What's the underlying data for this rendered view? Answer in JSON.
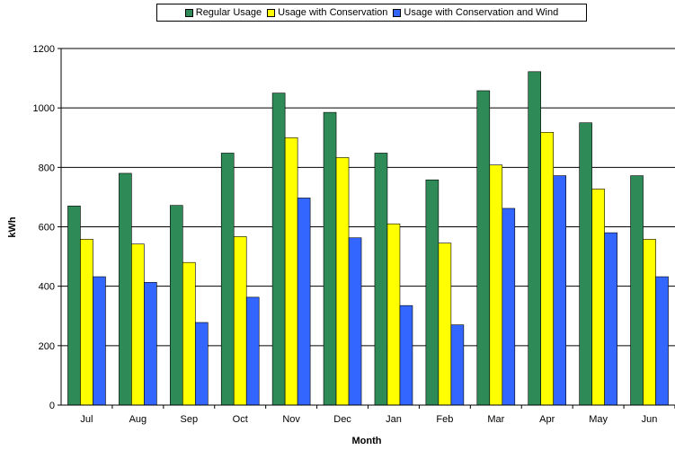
{
  "chart_data": {
    "type": "bar",
    "title": "",
    "xlabel": "Month",
    "ylabel": "kWh",
    "ylim": [
      0,
      1200
    ],
    "yticks": [
      0,
      200,
      400,
      600,
      800,
      1000,
      1200
    ],
    "grid": true,
    "legend_position": "top",
    "categories": [
      "Jul",
      "Aug",
      "Sep",
      "Oct",
      "Nov",
      "Dec",
      "Jan",
      "Feb",
      "Mar",
      "Apr",
      "May",
      "Jun"
    ],
    "series": [
      {
        "name": "Regular Usage",
        "color": "#2e8b57",
        "values": [
          670,
          780,
          672,
          848,
          1050,
          985,
          848,
          758,
          1058,
          1122,
          950,
          772
        ]
      },
      {
        "name": "Usage with Conservation",
        "color": "#ffff00",
        "values": [
          558,
          542,
          480,
          567,
          900,
          833,
          610,
          545,
          808,
          918,
          727,
          558
        ]
      },
      {
        "name": "Usage with Conservation and Wind",
        "color": "#3366ff",
        "values": [
          432,
          413,
          278,
          363,
          697,
          563,
          335,
          270,
          662,
          772,
          580,
          432
        ]
      }
    ]
  }
}
